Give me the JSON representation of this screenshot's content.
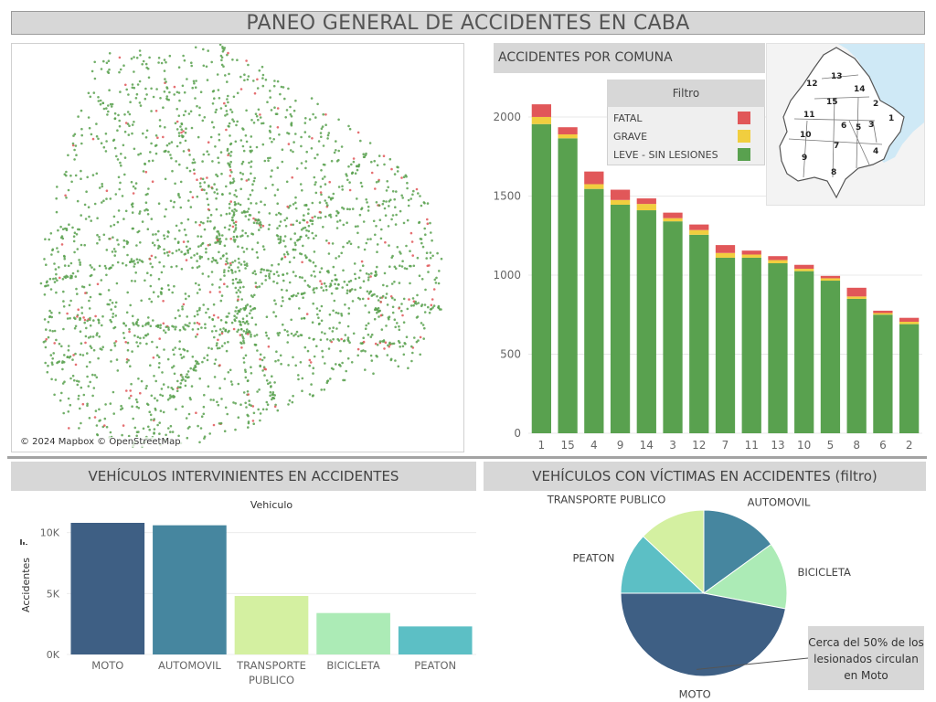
{
  "title": "PANEO GENERAL DE ACCIDENTES EN CABA",
  "map": {
    "credit": "© 2024 Mapbox © OpenStreetMap"
  },
  "comuna_panel": {
    "title": "ACCIDENTES POR COMUNA",
    "legend": {
      "title": "Filtro",
      "items": [
        {
          "label": "FATAL",
          "color": "#e15759"
        },
        {
          "label": "GRAVE",
          "color": "#f1ce3f"
        },
        {
          "label": "LEVE - SIN LESIONES",
          "color": "#59a14f"
        }
      ]
    },
    "inset_labels": [
      "13",
      "12",
      "14",
      "15",
      "2",
      "11",
      "6",
      "5",
      "3",
      "1",
      "10",
      "7",
      "4",
      "9",
      "8"
    ]
  },
  "vehiculos_panel": {
    "title": "VEHÍCULOS INTERVINIENTES EN ACCIDENTES"
  },
  "victimas_panel": {
    "title": "VEHÍCULOS CON VÍCTIMAS EN ACCIDENTES (filtro)"
  },
  "annotation": {
    "text": "Cerca del 50% de los lesionados circulan en Moto"
  },
  "chart_data": [
    {
      "type": "bar",
      "stacked": true,
      "title": "ACCIDENTES POR COMUNA",
      "categories": [
        "1",
        "15",
        "4",
        "9",
        "14",
        "3",
        "12",
        "7",
        "11",
        "13",
        "10",
        "5",
        "8",
        "6",
        "2"
      ],
      "series": [
        {
          "name": "LEVE - SIN LESIONES",
          "color": "#59a14f",
          "values": [
            1955,
            1865,
            1545,
            1445,
            1410,
            1340,
            1255,
            1110,
            1110,
            1075,
            1025,
            965,
            850,
            750,
            690
          ]
        },
        {
          "name": "GRAVE",
          "color": "#f1ce3f",
          "values": [
            45,
            25,
            30,
            30,
            40,
            20,
            30,
            30,
            20,
            20,
            15,
            15,
            15,
            10,
            15
          ]
        },
        {
          "name": "FATAL",
          "color": "#e15759",
          "values": [
            80,
            45,
            80,
            65,
            35,
            35,
            35,
            50,
            25,
            25,
            25,
            15,
            55,
            15,
            25
          ]
        }
      ],
      "yticks": [
        0,
        500,
        1000,
        1500,
        2000
      ],
      "ylim": [
        0,
        2150
      ],
      "grid": true,
      "legend": "top-right"
    },
    {
      "type": "bar",
      "title": "VEHÍCULOS INTERVINIENTES EN ACCIDENTES",
      "subtitle": "Vehiculo",
      "categories": [
        [
          "MOTO"
        ],
        [
          "AUTOMOVIL"
        ],
        [
          "TRANSPORTE",
          "PUBLICO"
        ],
        [
          "BICICLETA"
        ],
        [
          "PEATON"
        ]
      ],
      "values": [
        10800,
        10600,
        4800,
        3400,
        2300
      ],
      "colors": [
        "#3e5f84",
        "#46869f",
        "#d4f0a1",
        "#acebb6",
        "#5cbfc5"
      ],
      "ylabel": "Accidentes",
      "yticks": [
        0,
        5000,
        10000
      ],
      "ytick_labels": [
        "0K",
        "5K",
        "10K"
      ],
      "ylim": [
        0,
        11400
      ]
    },
    {
      "type": "pie",
      "title": "VEHÍCULOS CON VÍCTIMAS EN ACCIDENTES (filtro)",
      "labels": [
        "AUTOMOVIL",
        "BICICLETA",
        "MOTO",
        "PEATON",
        "TRANSPORTE PUBLICO"
      ],
      "values": [
        15,
        13,
        47,
        12,
        13
      ],
      "colors": [
        "#46869f",
        "#acebb6",
        "#3e5f84",
        "#5cbfc5",
        "#d4f0a1"
      ]
    }
  ]
}
